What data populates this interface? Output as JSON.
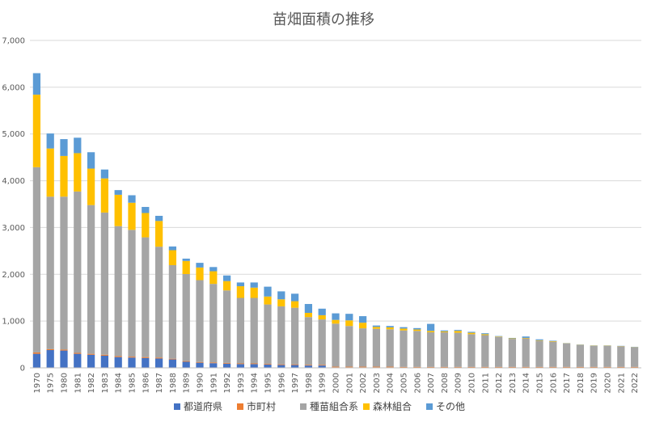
{
  "chart_data": {
    "type": "bar",
    "stacked": true,
    "title": "苗畑面積の推移",
    "xlabel": "",
    "ylabel": "",
    "ylim": [
      0,
      7000
    ],
    "yticks": [
      "0",
      "1,000",
      "2,000",
      "3,000",
      "4,000",
      "5,000",
      "6,000",
      "7,000"
    ],
    "grid": true,
    "legend_position": "bottom",
    "categories": [
      "1970",
      "1975",
      "1980",
      "1981",
      "1982",
      "1983",
      "1984",
      "1985",
      "1986",
      "1987",
      "1988",
      "1989",
      "1990",
      "1991",
      "1992",
      "1993",
      "1994",
      "1995",
      "1996",
      "1997",
      "1998",
      "1999",
      "2000",
      "2001",
      "2002",
      "2003",
      "2004",
      "2005",
      "2006",
      "2007",
      "2008",
      "2009",
      "2010",
      "2011",
      "2012",
      "2013",
      "2014",
      "2015",
      "2016",
      "2017",
      "2018",
      "2019",
      "2020",
      "2021",
      "2022"
    ],
    "series": [
      {
        "name": "都道府県",
        "color": "#4472C4",
        "values": [
          300,
          380,
          370,
          300,
          280,
          260,
          230,
          220,
          210,
          200,
          180,
          130,
          110,
          100,
          90,
          80,
          80,
          70,
          60,
          60,
          50,
          50,
          10,
          10,
          10,
          10,
          10,
          5,
          5,
          5,
          5,
          5,
          5,
          5,
          5,
          5,
          5,
          5,
          5,
          5,
          5,
          5,
          5,
          5,
          5
        ]
      },
      {
        "name": "市町村",
        "color": "#ED7D31",
        "values": [
          30,
          20,
          20,
          20,
          20,
          20,
          20,
          20,
          20,
          20,
          15,
          15,
          15,
          15,
          15,
          15,
          15,
          15,
          15,
          15,
          15,
          15,
          15,
          15,
          15,
          15,
          15,
          15,
          15,
          15,
          15,
          15,
          15,
          15,
          15,
          15,
          15,
          15,
          15,
          15,
          15,
          15,
          15,
          15,
          15
        ]
      },
      {
        "name": "種苗組合系",
        "color": "#A5A5A5",
        "values": [
          3960,
          3260,
          3270,
          3450,
          3180,
          3040,
          2780,
          2710,
          2560,
          2370,
          2000,
          1860,
          1750,
          1680,
          1550,
          1400,
          1400,
          1270,
          1240,
          1210,
          1020,
          970,
          920,
          870,
          820,
          810,
          800,
          780,
          770,
          740,
          740,
          730,
          700,
          680,
          640,
          600,
          610,
          560,
          540,
          500,
          470,
          450,
          450,
          440,
          420
        ]
      },
      {
        "name": "森林組合",
        "color": "#FFC000",
        "values": [
          1550,
          1030,
          870,
          820,
          780,
          730,
          670,
          580,
          520,
          550,
          320,
          280,
          270,
          270,
          200,
          250,
          220,
          170,
          150,
          140,
          90,
          90,
          80,
          120,
          120,
          40,
          40,
          40,
          30,
          30,
          20,
          40,
          30,
          20,
          10,
          10,
          10,
          10,
          10,
          5,
          5,
          5,
          5,
          5,
          5
        ]
      },
      {
        "name": "その他",
        "color": "#5B9BD5",
        "values": [
          460,
          320,
          360,
          330,
          350,
          190,
          100,
          160,
          130,
          110,
          80,
          50,
          100,
          90,
          120,
          80,
          110,
          210,
          170,
          160,
          190,
          140,
          140,
          140,
          140,
          30,
          30,
          30,
          30,
          150,
          20,
          20,
          20,
          20,
          10,
          10,
          30,
          20,
          10,
          5,
          5,
          5,
          5,
          5,
          5
        ]
      }
    ]
  }
}
